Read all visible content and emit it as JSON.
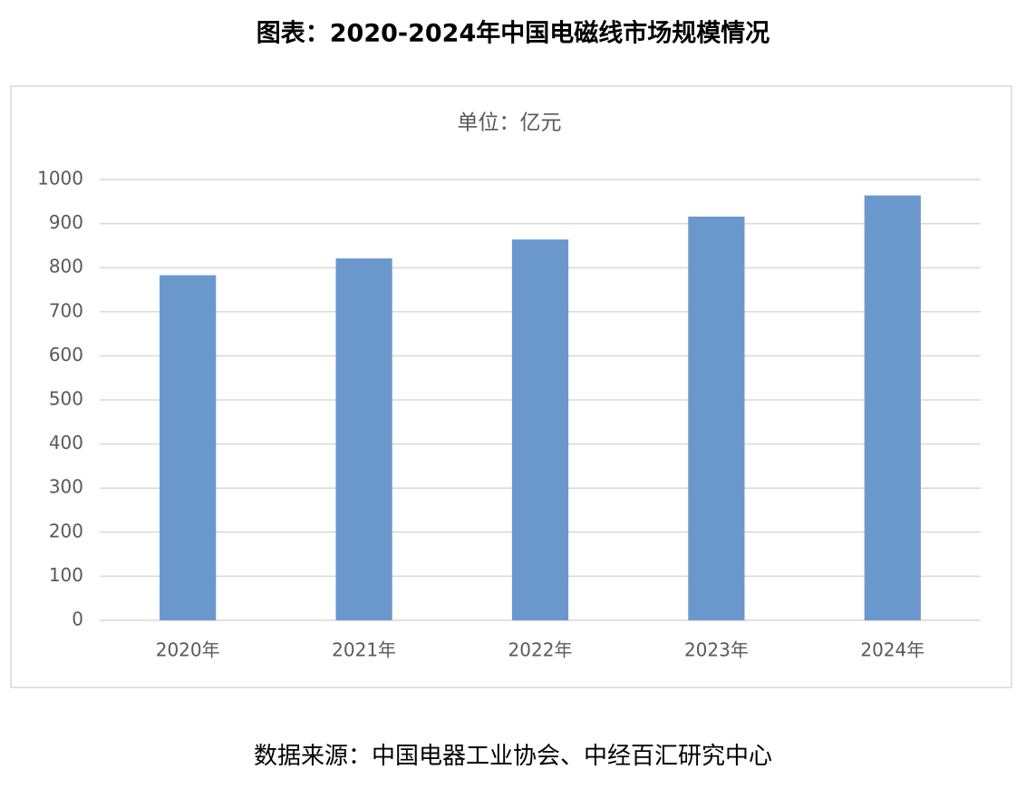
{
  "chart_data": {
    "type": "bar",
    "title": "图表：2020-2024年中国电磁线市场规模情况",
    "subtitle": "单位：亿元",
    "categories": [
      "2020年",
      "2021年",
      "2022年",
      "2023年",
      "2024年"
    ],
    "values": [
      783,
      821,
      864,
      916,
      964
    ],
    "color": "#6a98cc",
    "ylim": [
      0,
      1000
    ],
    "yticks": [
      0,
      100,
      200,
      300,
      400,
      500,
      600,
      700,
      800,
      900,
      1000
    ],
    "grid": true,
    "source": "数据来源：中国电器工业协会、中经百汇研究中心"
  }
}
